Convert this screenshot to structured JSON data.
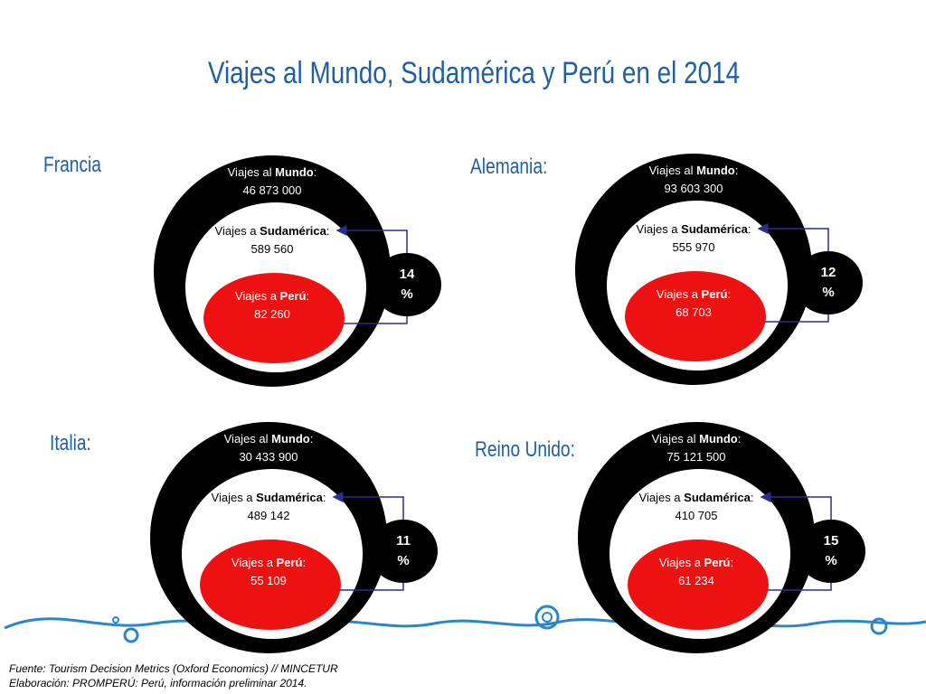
{
  "title": "Viajes al Mundo, Sudamérica y Perú en el 2014",
  "panels": [
    {
      "country": "Francia",
      "world": {
        "label": [
          "Viajes al ",
          "Mundo",
          ":"
        ],
        "value": "46 873 000"
      },
      "south": {
        "label": [
          "Viajes a ",
          "Sudamérica",
          ":"
        ],
        "value": "589 560"
      },
      "peru": {
        "label": [
          "Viajes a ",
          "Perú",
          ":"
        ],
        "value": "82 260"
      },
      "share": [
        "14",
        "%"
      ]
    },
    {
      "country": "Alemania:",
      "world": {
        "label": [
          "Viajes al ",
          "Mundo",
          ":"
        ],
        "value": "93 603 300"
      },
      "south": {
        "label": [
          "Viajes a ",
          "Sudamérica",
          ":"
        ],
        "value": "555 970"
      },
      "peru": {
        "label": [
          "Viajes a ",
          "Perú",
          ":"
        ],
        "value": "68 703"
      },
      "share": [
        "12",
        "%"
      ]
    },
    {
      "country": "Italia:",
      "world": {
        "label": [
          "Viajes al ",
          "Mundo",
          ":"
        ],
        "value": "30 433 900"
      },
      "south": {
        "label": [
          "Viajes a ",
          "Sudamérica",
          ":"
        ],
        "value": "489 142"
      },
      "peru": {
        "label": [
          "Viajes a ",
          "Perú",
          ":"
        ],
        "value": "55 109"
      },
      "share": [
        "11",
        "%"
      ]
    },
    {
      "country": "Reino Unido:",
      "world": {
        "label": [
          "Viajes al ",
          "Mundo",
          ":"
        ],
        "value": "75 121 500"
      },
      "south": {
        "label": [
          "Viajes a ",
          "Sudamérica",
          ":"
        ],
        "value": "410 705"
      },
      "peru": {
        "label": [
          "Viajes a ",
          "Perú",
          ":"
        ],
        "value": "61 234"
      },
      "share": [
        "15",
        "%"
      ]
    }
  ],
  "footer": [
    "Fuente: Tourism Decision Metrics (Oxford Economics) // MINCETUR",
    "Elaboración: PROMPERÚ: Perú, información preliminar 2014."
  ]
}
